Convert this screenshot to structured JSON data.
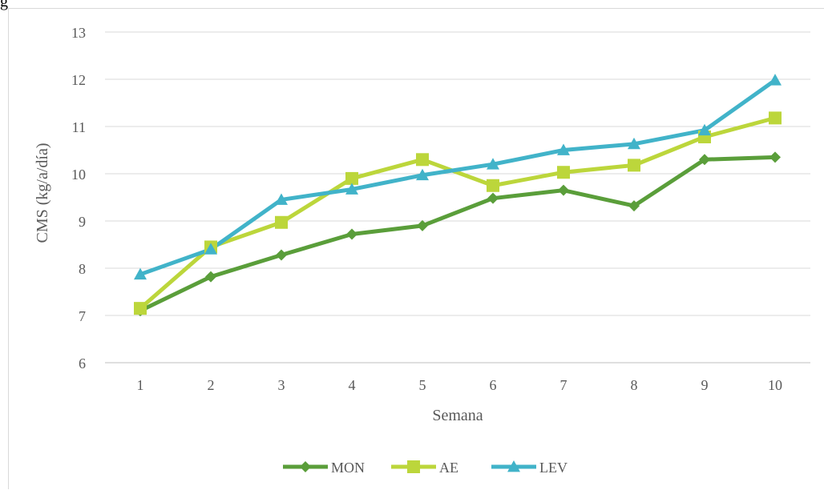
{
  "page": {
    "corner_text": "g"
  },
  "chart_data": {
    "type": "line",
    "title": "",
    "xlabel": "Semana",
    "ylabel": "CMS (kg/a/día)",
    "categories": [
      "1",
      "2",
      "3",
      "4",
      "5",
      "6",
      "7",
      "8",
      "9",
      "10"
    ],
    "ylim": [
      6,
      13
    ],
    "yticks": [
      "6",
      "7",
      "8",
      "9",
      "10",
      "11",
      "12",
      "13"
    ],
    "grid": "horizontal",
    "legend_position": "bottom",
    "series": [
      {
        "name": "MON",
        "color": "#5a9e3a",
        "marker": "diamond",
        "values": [
          7.1,
          7.82,
          8.28,
          8.72,
          8.9,
          9.48,
          9.65,
          9.32,
          10.3,
          10.35
        ]
      },
      {
        "name": "AE",
        "color": "#bcd63b",
        "marker": "square",
        "values": [
          7.15,
          8.45,
          8.97,
          9.9,
          10.3,
          9.75,
          10.03,
          10.18,
          10.78,
          11.18
        ]
      },
      {
        "name": "LEV",
        "color": "#41b3c9",
        "marker": "triangle",
        "values": [
          7.87,
          8.4,
          9.45,
          9.67,
          9.97,
          10.2,
          10.5,
          10.63,
          10.92,
          11.98
        ]
      }
    ]
  }
}
